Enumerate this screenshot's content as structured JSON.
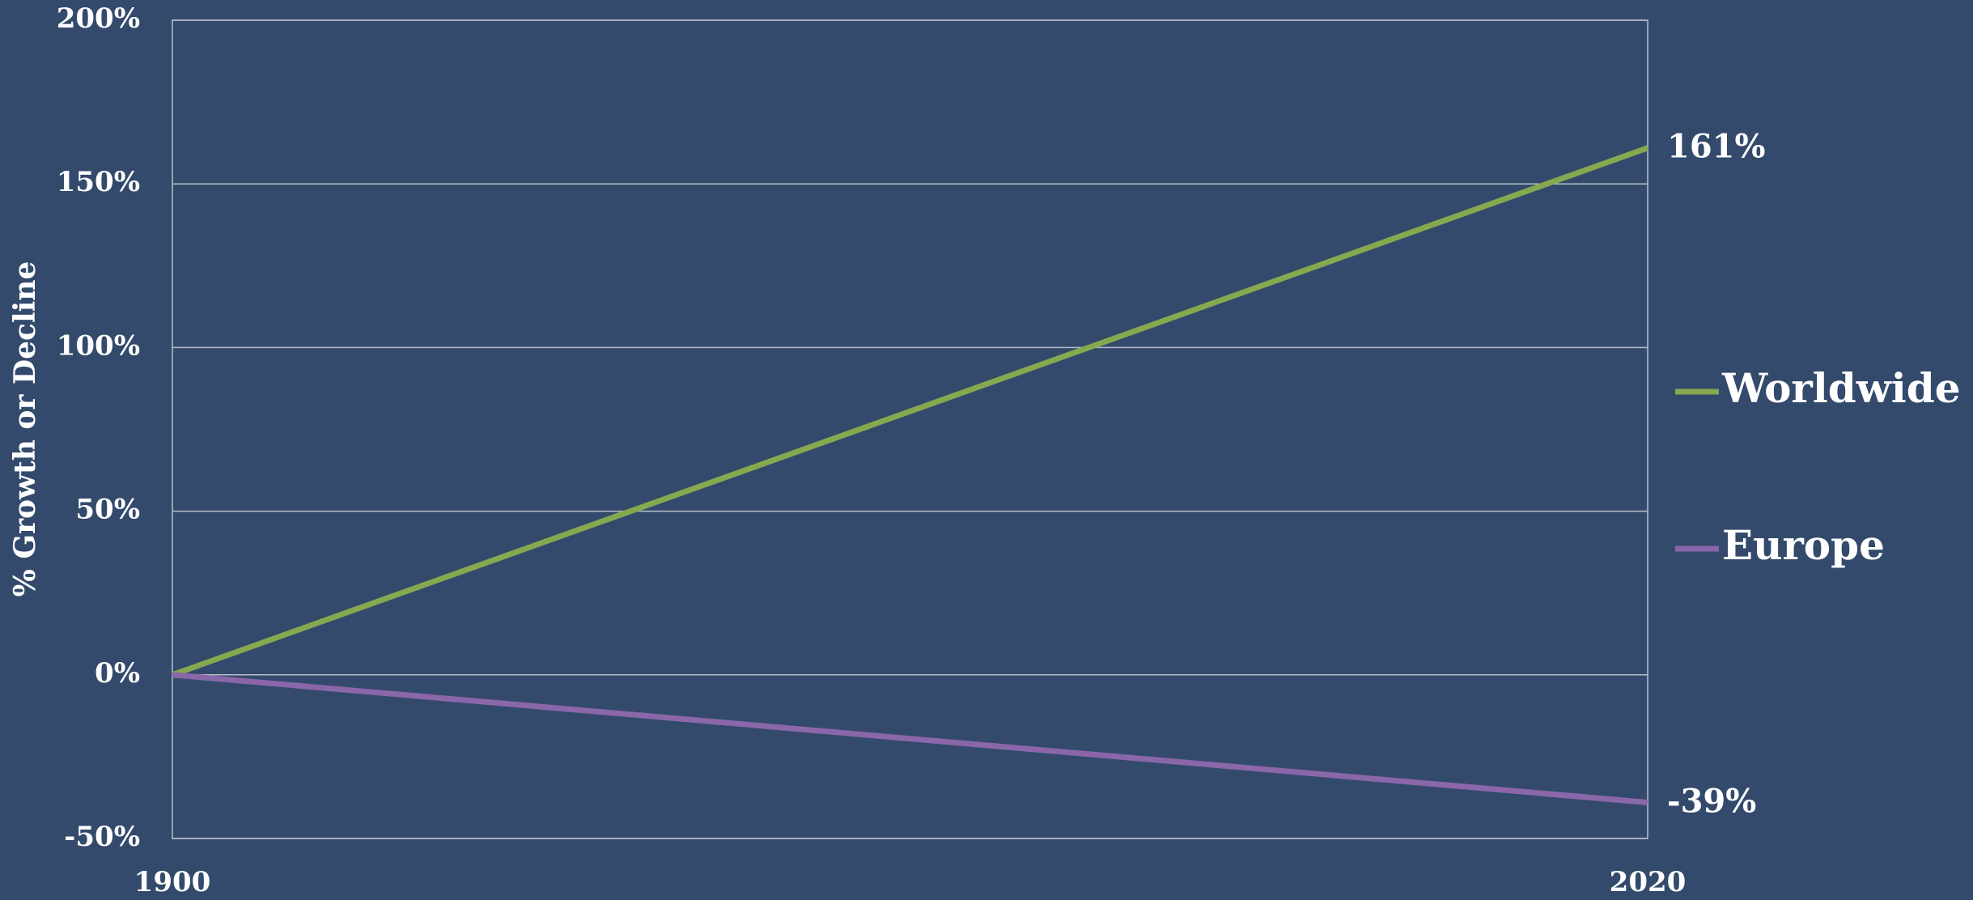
{
  "chart_data": {
    "type": "line",
    "y_label": "% Growth or Decline",
    "x": [
      1900,
      2020
    ],
    "xlim": [
      1900,
      2020
    ],
    "xticks": [
      1900,
      2020
    ],
    "ylim": [
      -50,
      200
    ],
    "yticks": [
      {
        "value": -50,
        "label": "-50%"
      },
      {
        "value": 0,
        "label": "0%"
      },
      {
        "value": 50,
        "label": "50%"
      },
      {
        "value": 100,
        "label": "100%"
      },
      {
        "value": 150,
        "label": "150%"
      },
      {
        "value": 200,
        "label": "200%"
      }
    ],
    "grid": true,
    "legend": "right",
    "series": [
      {
        "name": "Worldwide",
        "color": "#86a84f",
        "values": [
          0,
          161
        ],
        "value_labels": [
          null,
          "161%"
        ]
      },
      {
        "name": "Europe",
        "color": "#8a67a8",
        "values": [
          0,
          -39
        ],
        "value_labels": [
          null,
          "-39%"
        ]
      }
    ]
  }
}
